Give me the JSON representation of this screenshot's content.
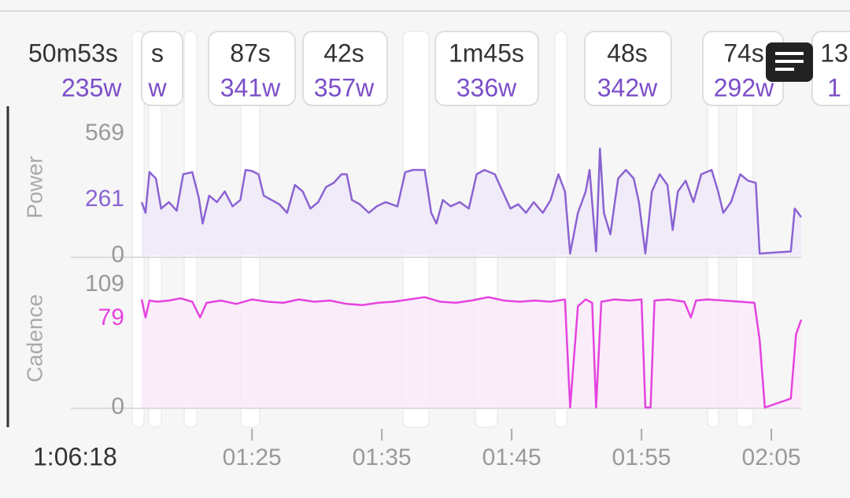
{
  "summary": {
    "duration": "50m53s",
    "power": "235w"
  },
  "intervals": [
    {
      "duration": "s",
      "power": "w"
    },
    {
      "duration": "87s",
      "power": "341w"
    },
    {
      "duration": "42s",
      "power": "357w"
    },
    {
      "duration": "1m45s",
      "power": "336w"
    },
    {
      "duration": "48s",
      "power": "342w"
    },
    {
      "duration": "74s",
      "power": "292w"
    },
    {
      "duration": "13",
      "power": "1"
    }
  ],
  "elapsed": "1:06:18",
  "chart_data": [
    {
      "type": "line",
      "axis_label": "Power",
      "color": "#8a63d2",
      "fill": "#efe9f8",
      "ylim": [
        0,
        569
      ],
      "yticks": [
        0,
        261,
        569
      ],
      "xlim": [
        76.5,
        127.3
      ],
      "x": [
        76.5,
        76.8,
        77.1,
        77.6,
        78.0,
        78.6,
        79.2,
        79.7,
        80.4,
        80.9,
        81.2,
        81.7,
        82.3,
        82.9,
        83.5,
        84.1,
        84.5,
        85.0,
        85.5,
        85.9,
        86.5,
        87.1,
        87.7,
        88.3,
        88.9,
        89.5,
        90.1,
        90.7,
        91.3,
        91.9,
        92.3,
        92.7,
        93.3,
        94.0,
        94.6,
        95.3,
        96.2,
        96.8,
        97.4,
        98.3,
        98.8,
        99.2,
        99.7,
        100.3,
        101.0,
        101.7,
        102.3,
        102.9,
        103.7,
        104.3,
        104.9,
        105.5,
        106.1,
        106.7,
        107.4,
        108.0,
        108.6,
        109.1,
        109.5,
        110.1,
        110.7,
        111.0,
        111.5,
        111.8,
        112.1,
        112.6,
        113.2,
        113.8,
        114.4,
        114.8,
        115.3,
        115.8,
        116.4,
        117.0,
        117.4,
        117.8,
        118.4,
        119.0,
        119.6,
        120.4,
        120.9,
        121.3,
        121.9,
        122.6,
        123.2,
        123.8,
        124.1,
        126.5,
        126.8,
        127.3
      ],
      "values": [
        250,
        200,
        390,
        360,
        220,
        250,
        210,
        380,
        390,
        270,
        150,
        280,
        250,
        300,
        230,
        260,
        400,
        395,
        380,
        280,
        260,
        240,
        200,
        330,
        300,
        220,
        250,
        320,
        340,
        380,
        380,
        260,
        240,
        200,
        230,
        250,
        230,
        390,
        400,
        400,
        200,
        150,
        260,
        230,
        250,
        220,
        380,
        400,
        380,
        300,
        220,
        240,
        200,
        250,
        200,
        260,
        380,
        300,
        10,
        200,
        300,
        400,
        20,
        500,
        200,
        100,
        360,
        400,
        360,
        250,
        10,
        300,
        380,
        330,
        120,
        300,
        350,
        250,
        380,
        400,
        300,
        200,
        250,
        380,
        350,
        340,
        10,
        20,
        220,
        180
      ]
    },
    {
      "type": "line",
      "axis_label": "Cadence",
      "color": "#e543e0",
      "fill": "#fbeafa",
      "ylim": [
        0,
        109
      ],
      "yticks": [
        0,
        79,
        109
      ],
      "xlim": [
        76.5,
        127.3
      ],
      "x": [
        76.5,
        76.8,
        77.1,
        77.7,
        78.6,
        79.5,
        80.4,
        81.0,
        81.5,
        82.6,
        83.8,
        85.0,
        86.2,
        87.4,
        88.6,
        89.8,
        91.0,
        92.3,
        93.5,
        94.7,
        95.9,
        97.1,
        98.3,
        99.5,
        100.7,
        101.9,
        103.2,
        104.4,
        105.6,
        106.8,
        108.0,
        109.1,
        109.5,
        110.1,
        110.7,
        111.2,
        111.5,
        111.9,
        112.9,
        114.1,
        115.0,
        115.3,
        115.7,
        116.0,
        117.1,
        118.3,
        118.8,
        119.2,
        120.1,
        121.3,
        122.6,
        123.7,
        124.1,
        124.5,
        126.5,
        126.9,
        127.3
      ],
      "values": [
        96,
        80,
        95,
        94,
        95,
        97,
        94,
        80,
        93,
        95,
        92,
        96,
        94,
        93,
        96,
        94,
        95,
        92,
        91,
        93,
        94,
        96,
        98,
        94,
        93,
        95,
        98,
        95,
        94,
        95,
        94,
        96,
        0,
        90,
        96,
        93,
        0,
        94,
        96,
        95,
        96,
        0,
        0,
        95,
        96,
        94,
        80,
        95,
        96,
        95,
        94,
        93,
        60,
        0,
        8,
        65,
        78
      ]
    }
  ],
  "time_axis": {
    "xlim": [
      76.5,
      127.3
    ],
    "xticks": [
      {
        "value": 85,
        "label": "01:25"
      },
      {
        "value": 95,
        "label": "01:35"
      },
      {
        "value": 105,
        "label": "01:45"
      },
      {
        "value": 115,
        "label": "01:55"
      },
      {
        "value": 125,
        "label": "02:05"
      }
    ]
  }
}
